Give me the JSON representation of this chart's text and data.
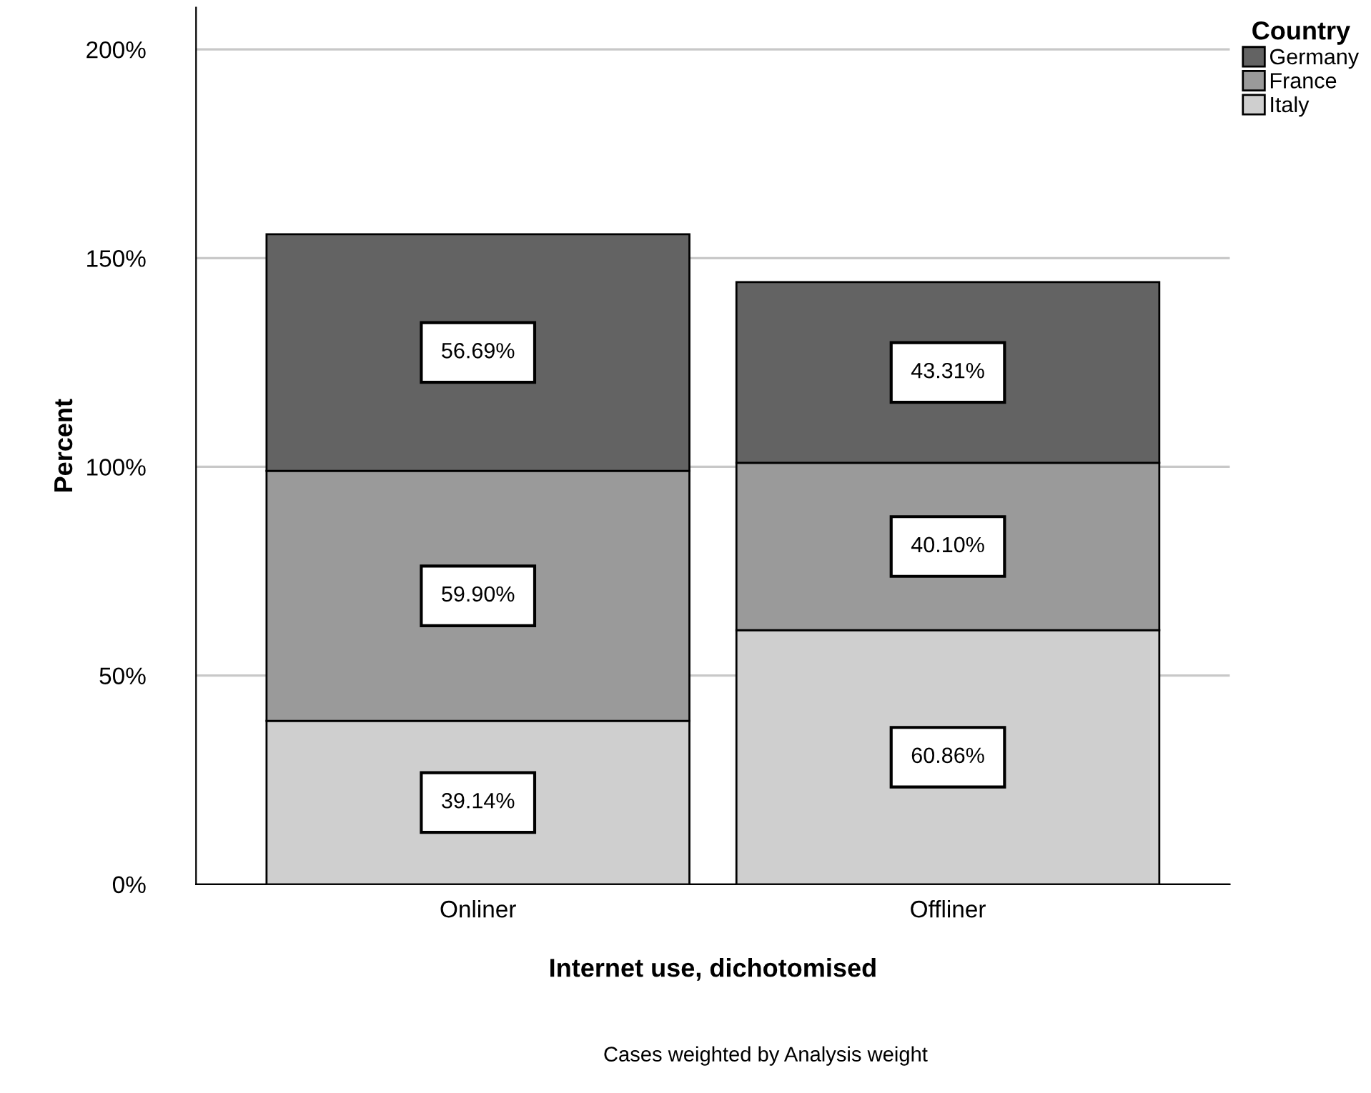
{
  "chart_data": {
    "type": "bar",
    "stacked": true,
    "xlabel": "Internet use, dichotomised",
    "ylabel": "Percent",
    "legend_title": "Country",
    "categories": [
      "Onliner",
      "Offliner"
    ],
    "series": [
      {
        "name": "Italy",
        "color": "#cfcfcf",
        "values": [
          39.14,
          60.86
        ],
        "value_labels": [
          "39.14%",
          "60.86%"
        ]
      },
      {
        "name": "France",
        "color": "#9a9a9a",
        "values": [
          59.9,
          40.1
        ],
        "value_labels": [
          "59.90%",
          "40.10%"
        ]
      },
      {
        "name": "Germany",
        "color": "#636363",
        "values": [
          56.69,
          43.31
        ],
        "value_labels": [
          "56.69%",
          "43.31%"
        ]
      }
    ],
    "ylim": [
      0,
      210
    ],
    "yticks": [
      {
        "value": 0,
        "label": "0%"
      },
      {
        "value": 50,
        "label": "50%"
      },
      {
        "value": 100,
        "label": "100%"
      },
      {
        "value": 150,
        "label": "150%"
      },
      {
        "value": 200,
        "label": "200%"
      }
    ],
    "grid": "y",
    "legend": "top right",
    "annotations": [
      "Cases weighted by Analysis weight"
    ]
  }
}
